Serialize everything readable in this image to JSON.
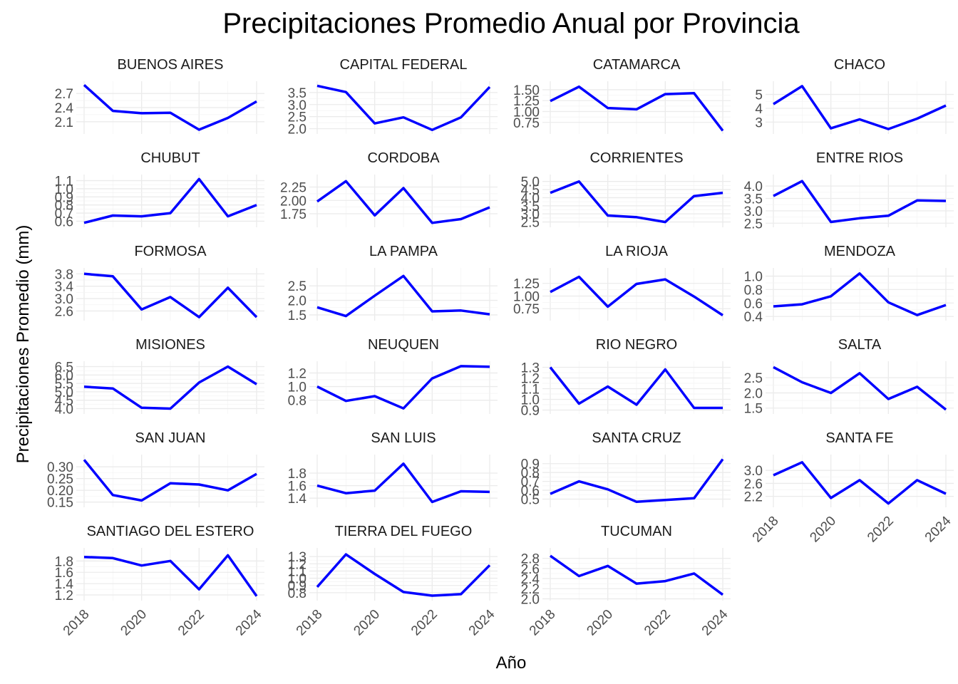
{
  "chart_data": {
    "type": "line",
    "title": "Precipitaciones Promedio Anual por Provincia",
    "xlabel": "Año",
    "ylabel": "Precipitaciones Promedio (mm)",
    "x": [
      2018,
      2019,
      2020,
      2021,
      2022,
      2023,
      2024
    ],
    "x_ticks": [
      "2018",
      "2020",
      "2022",
      "2024"
    ],
    "series_color": "#0000ff",
    "layout": "facet grid 4 columns, free y scales",
    "panels": [
      {
        "name": "BUENOS AIRES",
        "values": [
          2.88,
          2.33,
          2.28,
          2.29,
          1.93,
          2.18,
          2.53
        ],
        "ylim": [
          1.9,
          2.9
        ],
        "yticks": [
          "2.1",
          "2.4",
          "2.7"
        ]
      },
      {
        "name": "CAPITAL FEDERAL",
        "values": [
          3.78,
          3.52,
          2.22,
          2.47,
          1.95,
          2.47,
          3.73
        ],
        "ylim": [
          1.9,
          3.85
        ],
        "yticks": [
          "2.0",
          "2.5",
          "3.0",
          "3.5"
        ]
      },
      {
        "name": "CATAMARCA",
        "values": [
          1.24,
          1.57,
          1.08,
          1.05,
          1.4,
          1.42,
          0.56
        ],
        "ylim": [
          0.55,
          1.63
        ],
        "yticks": [
          "0.75",
          "1.00",
          "1.25",
          "1.50"
        ]
      },
      {
        "name": "CHACO",
        "values": [
          4.3,
          5.6,
          2.55,
          3.2,
          2.5,
          3.25,
          4.2
        ],
        "ylim": [
          2.35,
          5.75
        ],
        "yticks": [
          "3",
          "4",
          "5"
        ]
      },
      {
        "name": "CHUBUT",
        "values": [
          0.58,
          0.67,
          0.66,
          0.7,
          1.12,
          0.66,
          0.8
        ],
        "ylim": [
          0.56,
          1.14
        ],
        "yticks": [
          "0.6",
          "0.7",
          "0.8",
          "0.9",
          "1.0",
          "1.1"
        ]
      },
      {
        "name": "CORDOBA",
        "values": [
          1.98,
          2.36,
          1.72,
          2.23,
          1.58,
          1.65,
          1.87
        ],
        "ylim": [
          1.55,
          2.43
        ],
        "yticks": [
          "1.75",
          "2.00",
          "2.25"
        ]
      },
      {
        "name": "CORRIENTES",
        "values": [
          4.3,
          5.0,
          2.9,
          2.8,
          2.5,
          4.1,
          4.3
        ],
        "ylim": [
          2.35,
          5.25
        ],
        "yticks": [
          "2.5",
          "3.0",
          "3.5",
          "4.0",
          "4.5",
          "5.0"
        ]
      },
      {
        "name": "ENTRE RIOS",
        "values": [
          3.6,
          4.2,
          2.55,
          2.7,
          2.8,
          3.42,
          3.4
        ],
        "ylim": [
          2.45,
          4.35
        ],
        "yticks": [
          "2.5",
          "3.0",
          "3.5",
          "4.0"
        ]
      },
      {
        "name": "FORMOSA",
        "values": [
          3.8,
          3.72,
          2.65,
          3.05,
          2.4,
          3.35,
          2.4
        ],
        "ylim": [
          2.38,
          3.9
        ],
        "yticks": [
          "2.6",
          "3.0",
          "3.4",
          "3.8"
        ]
      },
      {
        "name": "LA PAMPA",
        "values": [
          1.76,
          1.46,
          2.16,
          2.84,
          1.62,
          1.65,
          1.52
        ],
        "ylim": [
          1.4,
          3.02
        ],
        "yticks": [
          "1.5",
          "2.0",
          "2.5"
        ]
      },
      {
        "name": "LA RIOJA",
        "values": [
          1.08,
          1.38,
          0.79,
          1.24,
          1.33,
          0.99,
          0.62
        ],
        "ylim": [
          0.57,
          1.5
        ],
        "yticks": [
          "0.75",
          "1.00",
          "1.25"
        ]
      },
      {
        "name": "MENDOZA",
        "values": [
          0.55,
          0.58,
          0.7,
          1.04,
          0.61,
          0.42,
          0.57
        ],
        "ylim": [
          0.38,
          1.08
        ],
        "yticks": [
          "0.4",
          "0.6",
          "0.8",
          "1.0"
        ]
      },
      {
        "name": "MISIONES",
        "values": [
          5.3,
          5.2,
          4.05,
          4.0,
          5.55,
          6.5,
          5.45
        ],
        "ylim": [
          3.85,
          6.65
        ],
        "yticks": [
          "4.0",
          "4.5",
          "5.0",
          "5.5",
          "6.0",
          "6.5"
        ]
      },
      {
        "name": "NEUQUEN",
        "values": [
          1.0,
          0.79,
          0.86,
          0.68,
          1.12,
          1.3,
          1.29
        ],
        "ylim": [
          0.64,
          1.33
        ],
        "yticks": [
          "0.8",
          "1.0",
          "1.2"
        ]
      },
      {
        "name": "RIO NEGRO",
        "values": [
          1.3,
          0.96,
          1.12,
          0.95,
          1.28,
          0.92,
          0.92
        ],
        "ylim": [
          0.89,
          1.33
        ],
        "yticks": [
          "0.9",
          "1.0",
          "1.1",
          "1.2",
          "1.3"
        ]
      },
      {
        "name": "SALTA",
        "values": [
          2.85,
          2.35,
          2.0,
          2.65,
          1.8,
          2.2,
          1.45
        ],
        "ylim": [
          1.4,
          2.95
        ],
        "yticks": [
          "1.5",
          "2.0",
          "2.5"
        ]
      },
      {
        "name": "SAN JUAN",
        "values": [
          0.33,
          0.18,
          0.157,
          0.23,
          0.225,
          0.2,
          0.27
        ],
        "ylim": [
          0.14,
          0.34
        ],
        "yticks": [
          "0.15",
          "0.20",
          "0.25",
          "0.30"
        ]
      },
      {
        "name": "SAN LUIS",
        "values": [
          1.6,
          1.48,
          1.52,
          1.95,
          1.34,
          1.51,
          1.5
        ],
        "ylim": [
          1.3,
          2.05
        ],
        "yticks": [
          "1.4",
          "1.6",
          "1.8"
        ]
      },
      {
        "name": "SANTA CRUZ",
        "values": [
          0.56,
          0.7,
          0.61,
          0.47,
          0.49,
          0.51,
          0.95
        ],
        "ylim": [
          0.44,
          0.97
        ],
        "yticks": [
          "0.5",
          "0.6",
          "0.7",
          "0.8",
          "0.9"
        ]
      },
      {
        "name": "SANTA FE",
        "values": [
          2.85,
          3.25,
          2.15,
          2.7,
          1.98,
          2.7,
          2.28
        ],
        "ylim": [
          1.95,
          3.4
        ],
        "yticks": [
          "2.2",
          "2.6",
          "3.0"
        ]
      },
      {
        "name": "SANTIAGO DEL ESTERO",
        "values": [
          1.87,
          1.85,
          1.72,
          1.8,
          1.3,
          1.9,
          1.18
        ],
        "ylim": [
          1.15,
          1.98
        ],
        "yticks": [
          "1.2",
          "1.4",
          "1.6",
          "1.8"
        ]
      },
      {
        "name": "TIERRA DEL FUEGO",
        "values": [
          0.88,
          1.33,
          1.06,
          0.81,
          0.76,
          0.78,
          1.18
        ],
        "ylim": [
          0.73,
          1.38
        ],
        "yticks": [
          "0.8",
          "0.9",
          "1.0",
          "1.1",
          "1.2",
          "1.3"
        ]
      },
      {
        "name": "TUCUMAN",
        "values": [
          2.85,
          2.45,
          2.65,
          2.3,
          2.35,
          2.5,
          2.08
        ],
        "ylim": [
          2.02,
          2.95
        ],
        "yticks": [
          "2.0",
          "2.2",
          "2.4",
          "2.6",
          "2.8"
        ]
      }
    ]
  }
}
